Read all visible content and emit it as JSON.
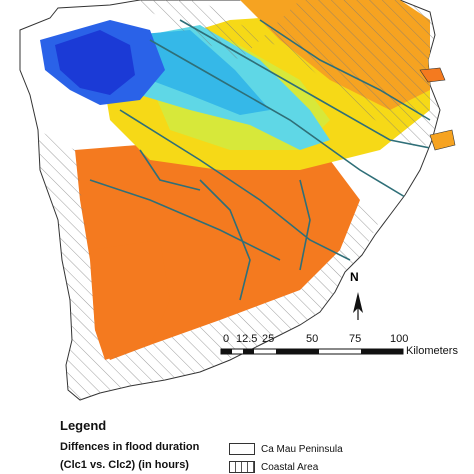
{
  "map": {
    "colors": {
      "deep_blue": "#1b3ad6",
      "blue": "#2a62e8",
      "light_blue": "#35b8e8",
      "cyan": "#5fd7e6",
      "green_yellow": "#d7e83a",
      "yellow": "#f6d917",
      "orange": "#f6a321",
      "dark_orange": "#f47a1f",
      "river": "#2f6f78",
      "hatch": "#7a7a7a"
    }
  },
  "north_arrow": {
    "label": "N"
  },
  "scale_bar": {
    "ticks": [
      "0",
      "12.5",
      "25",
      "50",
      "75",
      "100"
    ],
    "unit": "Kilometers"
  },
  "legend": {
    "title": "Legend",
    "subtitle_line1": "Diffences in flood duration",
    "subtitle_line2": "(Clc1 vs. Clc2) (in hours)",
    "items": [
      {
        "label": "Ca Mau Peninsula",
        "pattern": "outline"
      },
      {
        "label": "Coastal Area",
        "pattern": "hatched"
      }
    ]
  }
}
